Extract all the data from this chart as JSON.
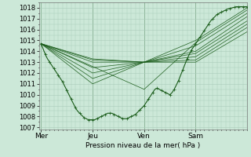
{
  "background_color": "#cce8d8",
  "grid_color": "#aaccbb",
  "line_color": "#1a5c1a",
  "ylabel_ticks": [
    1007,
    1008,
    1009,
    1010,
    1011,
    1012,
    1013,
    1014,
    1015,
    1016,
    1017,
    1018
  ],
  "ylim": [
    1006.8,
    1018.5
  ],
  "xlabel": "Pression niveau de la mer( hPa )",
  "xtick_labels": [
    "Mer",
    "Jeu",
    "Ven",
    "Sam"
  ],
  "xtick_positions": [
    0,
    48,
    96,
    144
  ],
  "xlim": [
    -2,
    192
  ],
  "x_vlines": [
    0,
    48,
    96,
    144
  ],
  "main_curve_x": [
    0,
    2,
    4,
    6,
    8,
    10,
    12,
    14,
    16,
    18,
    20,
    22,
    24,
    26,
    28,
    30,
    32,
    34,
    36,
    38,
    40,
    42,
    44,
    46,
    48,
    50,
    52,
    54,
    56,
    58,
    60,
    62,
    64,
    66,
    68,
    70,
    72,
    74,
    76,
    78,
    80,
    82,
    84,
    86,
    88,
    90,
    92,
    94,
    96,
    98,
    100,
    102,
    104,
    106,
    108,
    110,
    112,
    114,
    116,
    118,
    120,
    122,
    124,
    126,
    128,
    130,
    132,
    134,
    136,
    138,
    140,
    142,
    144,
    146,
    148,
    150,
    152,
    154,
    156,
    158,
    160,
    162,
    164,
    166,
    168,
    170,
    172,
    174,
    176,
    178,
    180,
    182,
    184,
    186,
    188,
    190,
    192
  ],
  "main_curve_y": [
    1014.7,
    1014.2,
    1013.7,
    1013.3,
    1013.0,
    1012.7,
    1012.4,
    1012.1,
    1011.8,
    1011.5,
    1011.2,
    1010.8,
    1010.4,
    1010.0,
    1009.6,
    1009.2,
    1008.8,
    1008.5,
    1008.3,
    1008.1,
    1007.9,
    1007.8,
    1007.7,
    1007.7,
    1007.7,
    1007.7,
    1007.8,
    1007.9,
    1008.0,
    1008.1,
    1008.2,
    1008.3,
    1008.3,
    1008.3,
    1008.2,
    1008.1,
    1008.0,
    1007.9,
    1007.8,
    1007.8,
    1007.8,
    1007.9,
    1008.0,
    1008.1,
    1008.2,
    1008.4,
    1008.6,
    1008.8,
    1009.0,
    1009.3,
    1009.6,
    1009.9,
    1010.2,
    1010.5,
    1010.6,
    1010.5,
    1010.4,
    1010.3,
    1010.2,
    1010.1,
    1010.0,
    1010.2,
    1010.5,
    1010.9,
    1011.3,
    1011.8,
    1012.3,
    1012.8,
    1013.3,
    1013.7,
    1014.1,
    1014.4,
    1014.7,
    1015.0,
    1015.3,
    1015.6,
    1015.9,
    1016.2,
    1016.5,
    1016.8,
    1017.0,
    1017.2,
    1017.4,
    1017.5,
    1017.6,
    1017.7,
    1017.8,
    1017.9,
    1017.95,
    1018.0,
    1018.05,
    1018.1,
    1018.1,
    1018.1,
    1018.1,
    1018.1,
    1018.1
  ],
  "ensemble_lines": [
    [
      0,
      1014.7,
      48,
      1013.0,
      96,
      1013.0,
      144,
      1015.0,
      192,
      1018.0
    ],
    [
      0,
      1014.7,
      48,
      1012.5,
      96,
      1013.0,
      144,
      1014.5,
      192,
      1017.5
    ],
    [
      0,
      1014.7,
      48,
      1011.5,
      96,
      1013.0,
      144,
      1014.0,
      192,
      1017.2
    ],
    [
      0,
      1014.7,
      48,
      1011.0,
      96,
      1013.0,
      144,
      1013.8,
      192,
      1016.8
    ],
    [
      0,
      1014.7,
      48,
      1012.0,
      96,
      1013.0,
      144,
      1013.5,
      192,
      1016.5
    ],
    [
      0,
      1014.7,
      48,
      1013.2,
      96,
      1013.0,
      144,
      1013.2,
      192,
      1016.2
    ],
    [
      0,
      1014.7,
      48,
      1013.3,
      96,
      1013.0,
      144,
      1013.0,
      192,
      1015.8
    ],
    [
      0,
      1014.7,
      96,
      1010.5,
      144,
      1014.8,
      192,
      1017.8
    ]
  ]
}
